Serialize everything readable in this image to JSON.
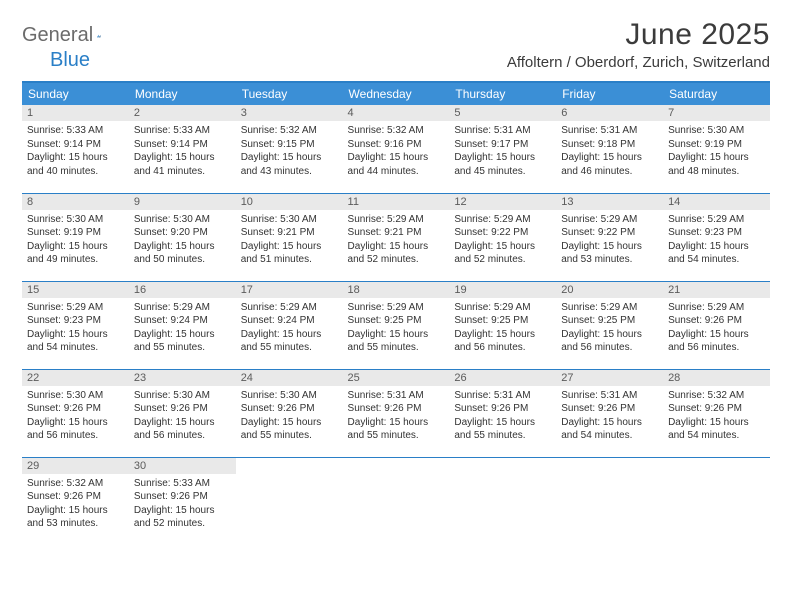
{
  "logo": {
    "text1": "General",
    "text2": "Blue"
  },
  "title": "June 2025",
  "location": "Affoltern / Oberdorf, Zurich, Switzerland",
  "colors": {
    "header_bg": "#3b8fd6",
    "header_text": "#ffffff",
    "border": "#2a7fc7",
    "daynum_bg": "#e9e9e9",
    "daynum_text": "#5b5b5b",
    "body_text": "#333333",
    "title_text": "#3b3b3b",
    "logo_gray": "#6b6b6b",
    "logo_blue": "#2a7fc7"
  },
  "weekdays": [
    "Sunday",
    "Monday",
    "Tuesday",
    "Wednesday",
    "Thursday",
    "Friday",
    "Saturday"
  ],
  "days": [
    {
      "n": 1,
      "sunrise": "5:33 AM",
      "sunset": "9:14 PM",
      "dl": "15 hours and 40 minutes."
    },
    {
      "n": 2,
      "sunrise": "5:33 AM",
      "sunset": "9:14 PM",
      "dl": "15 hours and 41 minutes."
    },
    {
      "n": 3,
      "sunrise": "5:32 AM",
      "sunset": "9:15 PM",
      "dl": "15 hours and 43 minutes."
    },
    {
      "n": 4,
      "sunrise": "5:32 AM",
      "sunset": "9:16 PM",
      "dl": "15 hours and 44 minutes."
    },
    {
      "n": 5,
      "sunrise": "5:31 AM",
      "sunset": "9:17 PM",
      "dl": "15 hours and 45 minutes."
    },
    {
      "n": 6,
      "sunrise": "5:31 AM",
      "sunset": "9:18 PM",
      "dl": "15 hours and 46 minutes."
    },
    {
      "n": 7,
      "sunrise": "5:30 AM",
      "sunset": "9:19 PM",
      "dl": "15 hours and 48 minutes."
    },
    {
      "n": 8,
      "sunrise": "5:30 AM",
      "sunset": "9:19 PM",
      "dl": "15 hours and 49 minutes."
    },
    {
      "n": 9,
      "sunrise": "5:30 AM",
      "sunset": "9:20 PM",
      "dl": "15 hours and 50 minutes."
    },
    {
      "n": 10,
      "sunrise": "5:30 AM",
      "sunset": "9:21 PM",
      "dl": "15 hours and 51 minutes."
    },
    {
      "n": 11,
      "sunrise": "5:29 AM",
      "sunset": "9:21 PM",
      "dl": "15 hours and 52 minutes."
    },
    {
      "n": 12,
      "sunrise": "5:29 AM",
      "sunset": "9:22 PM",
      "dl": "15 hours and 52 minutes."
    },
    {
      "n": 13,
      "sunrise": "5:29 AM",
      "sunset": "9:22 PM",
      "dl": "15 hours and 53 minutes."
    },
    {
      "n": 14,
      "sunrise": "5:29 AM",
      "sunset": "9:23 PM",
      "dl": "15 hours and 54 minutes."
    },
    {
      "n": 15,
      "sunrise": "5:29 AM",
      "sunset": "9:23 PM",
      "dl": "15 hours and 54 minutes."
    },
    {
      "n": 16,
      "sunrise": "5:29 AM",
      "sunset": "9:24 PM",
      "dl": "15 hours and 55 minutes."
    },
    {
      "n": 17,
      "sunrise": "5:29 AM",
      "sunset": "9:24 PM",
      "dl": "15 hours and 55 minutes."
    },
    {
      "n": 18,
      "sunrise": "5:29 AM",
      "sunset": "9:25 PM",
      "dl": "15 hours and 55 minutes."
    },
    {
      "n": 19,
      "sunrise": "5:29 AM",
      "sunset": "9:25 PM",
      "dl": "15 hours and 56 minutes."
    },
    {
      "n": 20,
      "sunrise": "5:29 AM",
      "sunset": "9:25 PM",
      "dl": "15 hours and 56 minutes."
    },
    {
      "n": 21,
      "sunrise": "5:29 AM",
      "sunset": "9:26 PM",
      "dl": "15 hours and 56 minutes."
    },
    {
      "n": 22,
      "sunrise": "5:30 AM",
      "sunset": "9:26 PM",
      "dl": "15 hours and 56 minutes."
    },
    {
      "n": 23,
      "sunrise": "5:30 AM",
      "sunset": "9:26 PM",
      "dl": "15 hours and 56 minutes."
    },
    {
      "n": 24,
      "sunrise": "5:30 AM",
      "sunset": "9:26 PM",
      "dl": "15 hours and 55 minutes."
    },
    {
      "n": 25,
      "sunrise": "5:31 AM",
      "sunset": "9:26 PM",
      "dl": "15 hours and 55 minutes."
    },
    {
      "n": 26,
      "sunrise": "5:31 AM",
      "sunset": "9:26 PM",
      "dl": "15 hours and 55 minutes."
    },
    {
      "n": 27,
      "sunrise": "5:31 AM",
      "sunset": "9:26 PM",
      "dl": "15 hours and 54 minutes."
    },
    {
      "n": 28,
      "sunrise": "5:32 AM",
      "sunset": "9:26 PM",
      "dl": "15 hours and 54 minutes."
    },
    {
      "n": 29,
      "sunrise": "5:32 AM",
      "sunset": "9:26 PM",
      "dl": "15 hours and 53 minutes."
    },
    {
      "n": 30,
      "sunrise": "5:33 AM",
      "sunset": "9:26 PM",
      "dl": "15 hours and 52 minutes."
    }
  ],
  "labels": {
    "sunrise": "Sunrise:",
    "sunset": "Sunset:",
    "daylight": "Daylight:"
  }
}
